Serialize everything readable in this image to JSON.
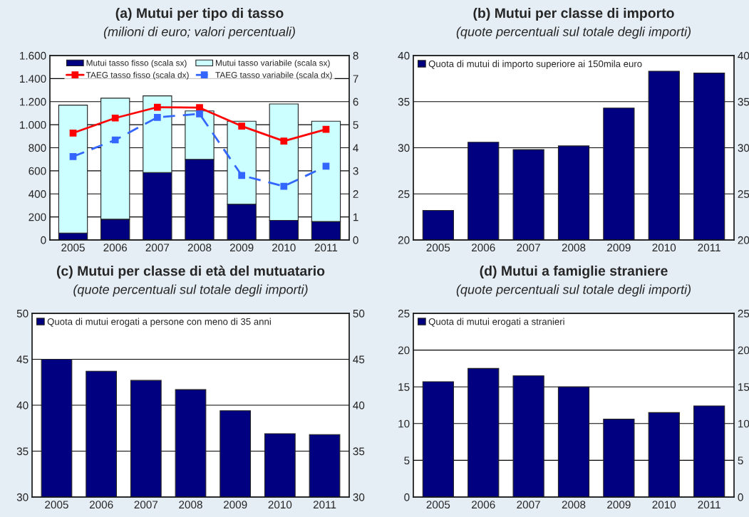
{
  "chart_data": [
    {
      "type": "bar",
      "title": "(a) Mutui per tipo di tasso",
      "subtitle": "(milioni di euro; valori percentuali)",
      "categories": [
        "2005",
        "2006",
        "2007",
        "2008",
        "2009",
        "2010",
        "2011"
      ],
      "stacked": true,
      "legend": "top",
      "grid": "y",
      "series": [
        {
          "name": "Mutui tasso fisso (scala sx)",
          "color": "#000080",
          "values": [
            60,
            180,
            585,
            700,
            310,
            170,
            160
          ]
        },
        {
          "name": "Mutui tasso variabile (scala sx)",
          "color": "#ccffff",
          "values": [
            1110,
            1050,
            665,
            420,
            720,
            1010,
            870
          ]
        },
        {
          "name": "TAEG tasso fisso (scala dx)",
          "type": "line",
          "axis": "y2",
          "color": "#ff0000",
          "marker": "square",
          "line_style": "solid",
          "values": [
            4.64,
            5.29,
            5.76,
            5.74,
            4.94,
            4.29,
            4.8
          ]
        },
        {
          "name": "TAEG tasso variabile (scala dx)",
          "type": "line",
          "axis": "y2",
          "color": "#3366ff",
          "marker": "square",
          "line_style": "dashed",
          "values": [
            3.62,
            4.34,
            5.32,
            5.47,
            2.8,
            2.33,
            3.2
          ]
        }
      ],
      "ylim": [
        0,
        1600
      ],
      "yticks": [
        0,
        200,
        400,
        600,
        800,
        {
          "value": 1000,
          "label": "1.000"
        },
        {
          "value": 1200,
          "label": "1.200"
        },
        {
          "value": 1400,
          "label": "1.400"
        },
        {
          "value": 1600,
          "label": "1.600"
        }
      ],
      "y2lim": [
        0,
        8
      ],
      "y2ticks": [
        0,
        1,
        2,
        3,
        4,
        5,
        6,
        7,
        8
      ]
    },
    {
      "type": "bar",
      "title": "(b) Mutui per classe di importo",
      "subtitle": "(quote percentuali sul totale degli importi)",
      "categories": [
        "2005",
        "2006",
        "2007",
        "2008",
        "2009",
        "2010",
        "2011"
      ],
      "legend": "top left",
      "grid": "y",
      "series": [
        {
          "name": "Quota di mutui di importo superiore ai 150mila euro",
          "color": "#000080",
          "values": [
            23.2,
            30.6,
            29.8,
            30.2,
            34.3,
            38.3,
            38.1
          ]
        }
      ],
      "ylim": [
        20,
        40
      ],
      "yticks": [
        20,
        25,
        30,
        35,
        40
      ],
      "y2lim": [
        20,
        40
      ],
      "y2ticks": [
        20,
        25,
        30,
        35,
        40
      ]
    },
    {
      "type": "bar",
      "title": "(c) Mutui per classe di età del mutuatario",
      "subtitle": "(quote percentuali sul totale degli importi)",
      "categories": [
        "2005",
        "2006",
        "2007",
        "2008",
        "2009",
        "2010",
        "2011"
      ],
      "legend": "top left",
      "grid": "y",
      "series": [
        {
          "name": "Quota di mutui erogati a persone con meno di 35 anni",
          "color": "#000080",
          "values": [
            45.0,
            43.7,
            42.7,
            41.7,
            39.4,
            36.9,
            36.8
          ]
        }
      ],
      "ylim": [
        30,
        50
      ],
      "yticks": [
        30,
        35,
        40,
        45,
        50
      ],
      "y2lim": [
        30,
        50
      ],
      "y2ticks": [
        30,
        35,
        40,
        45,
        50
      ]
    },
    {
      "type": "bar",
      "title": "(d) Mutui a famiglie straniere",
      "subtitle": "(quote percentuali sul totale degli importi)",
      "categories": [
        "2005",
        "2006",
        "2007",
        "2008",
        "2009",
        "2010",
        "2011"
      ],
      "legend": "top left",
      "grid": "y",
      "series": [
        {
          "name": "Quota di mutui erogati a stranieri",
          "color": "#000080",
          "values": [
            15.7,
            17.5,
            16.5,
            15.0,
            10.6,
            11.5,
            12.4
          ]
        }
      ],
      "ylim": [
        0,
        25
      ],
      "yticks": [
        0,
        5,
        10,
        15,
        20,
        25
      ],
      "y2lim": [
        0,
        25
      ],
      "y2ticks": [
        0,
        5,
        10,
        15,
        20,
        25
      ]
    }
  ]
}
